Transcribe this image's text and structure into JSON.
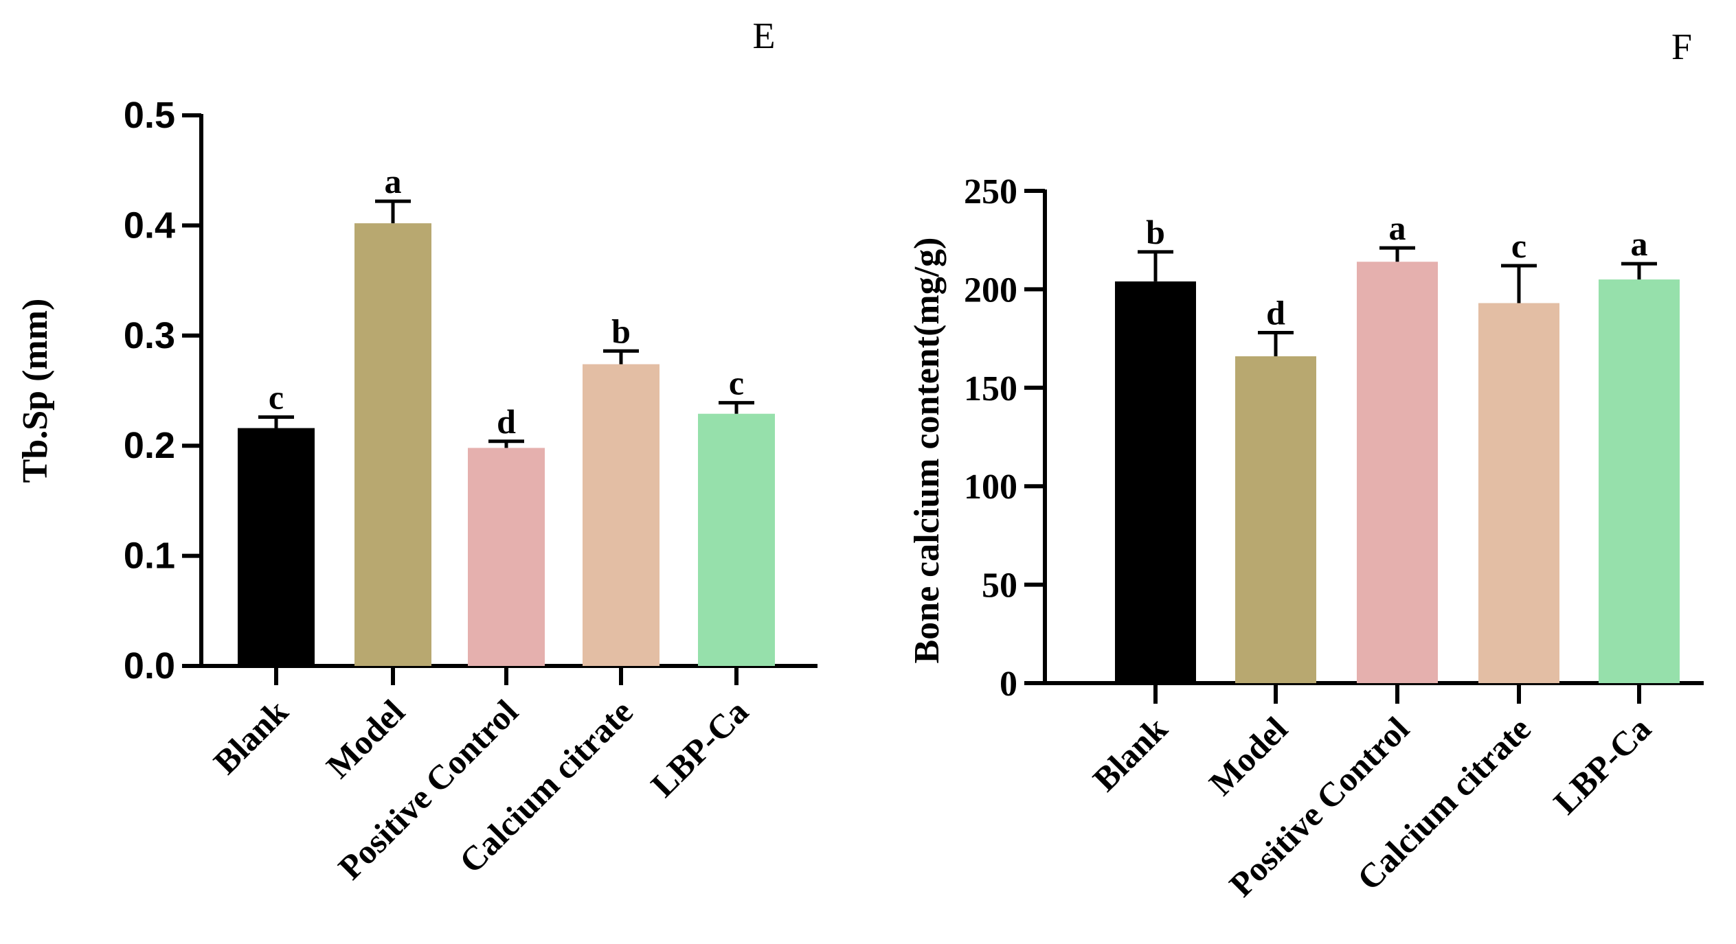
{
  "chart_data": [
    {
      "panel": "E",
      "type": "bar",
      "title": "",
      "xlabel": "",
      "ylabel": "Tb.Sp (mm)",
      "ylim": [
        0,
        0.5
      ],
      "yticks": [
        "0.0",
        "0.1",
        "0.2",
        "0.3",
        "0.4",
        "0.5"
      ],
      "categories": [
        "Blank",
        "Model",
        "Positive Control",
        "Calcium citrate",
        "LBP-Ca"
      ],
      "values": [
        0.216,
        0.402,
        0.198,
        0.274,
        0.229
      ],
      "errors": [
        0.01,
        0.02,
        0.006,
        0.012,
        0.01
      ],
      "labels": [
        "c",
        "a",
        "d",
        "b",
        "c"
      ],
      "colors": [
        "#000000",
        "#b8a870",
        "#e5b0ae",
        "#e3bea4",
        "#96e0ab"
      ]
    },
    {
      "panel": "F",
      "type": "bar",
      "title": "",
      "xlabel": "",
      "ylabel": "Bone calcium content(mg/g)",
      "ylim": [
        0,
        250
      ],
      "yticks": [
        "0",
        "50",
        "100",
        "150",
        "200",
        "250"
      ],
      "categories": [
        "Blank",
        "Model",
        "Positive Control",
        "Calcium citrate",
        "LBP-Ca"
      ],
      "values": [
        204,
        166,
        214,
        193,
        205
      ],
      "errors": [
        15,
        12,
        7,
        19,
        8
      ],
      "labels": [
        "b",
        "d",
        "a",
        "c",
        "a"
      ],
      "colors": [
        "#000000",
        "#b8a870",
        "#e5b0ae",
        "#e3bea4",
        "#96e0ab"
      ]
    }
  ]
}
